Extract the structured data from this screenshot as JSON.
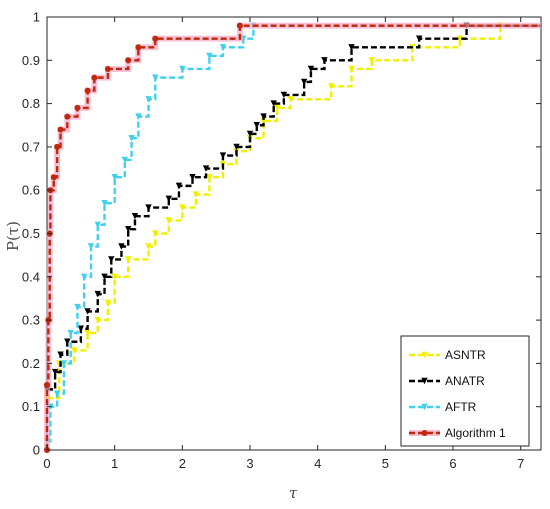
{
  "chart_data": {
    "type": "line",
    "plot_kind": "performance-profile-step",
    "xlabel": "τ",
    "ylabel": "P(τ)",
    "xlim": [
      0,
      7.3
    ],
    "ylim": [
      0,
      1
    ],
    "x_ticks": [
      "0",
      "1",
      "2",
      "3",
      "4",
      "5",
      "6",
      "7"
    ],
    "y_ticks": [
      "0",
      "0.1",
      "0.2",
      "0.3",
      "0.4",
      "0.5",
      "0.6",
      "0.7",
      "0.8",
      "0.9",
      "1"
    ],
    "x_tick_values": [
      0,
      1,
      2,
      3,
      4,
      5,
      6,
      7
    ],
    "y_tick_values": [
      0,
      0.1,
      0.2,
      0.3,
      0.4,
      0.5,
      0.6,
      0.7,
      0.8,
      0.9,
      1
    ],
    "grid": false,
    "legend_position": "bottom-right",
    "series": [
      {
        "name": "ASNTR",
        "color": "#f0f000",
        "marker": "triangle-down",
        "linestyle": "dashed",
        "points": [
          [
            0,
            0.12
          ],
          [
            0.18,
            0.2
          ],
          [
            0.4,
            0.23
          ],
          [
            0.6,
            0.27
          ],
          [
            0.75,
            0.3
          ],
          [
            0.9,
            0.34
          ],
          [
            1.0,
            0.4
          ],
          [
            1.2,
            0.44
          ],
          [
            1.5,
            0.47
          ],
          [
            1.6,
            0.5
          ],
          [
            1.8,
            0.53
          ],
          [
            2.0,
            0.56
          ],
          [
            2.2,
            0.59
          ],
          [
            2.4,
            0.63
          ],
          [
            2.6,
            0.66
          ],
          [
            2.8,
            0.69
          ],
          [
            3.0,
            0.72
          ],
          [
            3.2,
            0.76
          ],
          [
            3.4,
            0.79
          ],
          [
            3.6,
            0.81
          ],
          [
            4.2,
            0.84
          ],
          [
            4.5,
            0.88
          ],
          [
            4.8,
            0.9
          ],
          [
            5.4,
            0.93
          ],
          [
            6.1,
            0.95
          ],
          [
            6.7,
            0.98
          ],
          [
            7.3,
            0.98
          ]
        ]
      },
      {
        "name": "ANATR",
        "color": "#000000",
        "marker": "triangle-down",
        "linestyle": "dashed",
        "points": [
          [
            0,
            0.14
          ],
          [
            0.12,
            0.18
          ],
          [
            0.2,
            0.22
          ],
          [
            0.3,
            0.25
          ],
          [
            0.5,
            0.28
          ],
          [
            0.6,
            0.32
          ],
          [
            0.75,
            0.36
          ],
          [
            0.85,
            0.4
          ],
          [
            0.95,
            0.44
          ],
          [
            1.1,
            0.47
          ],
          [
            1.2,
            0.51
          ],
          [
            1.3,
            0.54
          ],
          [
            1.5,
            0.56
          ],
          [
            1.8,
            0.58
          ],
          [
            1.95,
            0.61
          ],
          [
            2.15,
            0.63
          ],
          [
            2.35,
            0.65
          ],
          [
            2.6,
            0.68
          ],
          [
            2.8,
            0.7
          ],
          [
            3.0,
            0.73
          ],
          [
            3.1,
            0.75
          ],
          [
            3.2,
            0.77
          ],
          [
            3.35,
            0.8
          ],
          [
            3.5,
            0.82
          ],
          [
            3.8,
            0.85
          ],
          [
            3.9,
            0.88
          ],
          [
            4.1,
            0.9
          ],
          [
            4.5,
            0.93
          ],
          [
            5.5,
            0.95
          ],
          [
            6.2,
            0.98
          ],
          [
            7.3,
            0.98
          ]
        ]
      },
      {
        "name": "AFTR",
        "color": "#40d0f0",
        "marker": "triangle-down",
        "linestyle": "dashed",
        "points": [
          [
            0,
            0.02
          ],
          [
            0.05,
            0.1
          ],
          [
            0.15,
            0.13
          ],
          [
            0.25,
            0.2
          ],
          [
            0.35,
            0.27
          ],
          [
            0.45,
            0.33
          ],
          [
            0.55,
            0.4
          ],
          [
            0.65,
            0.47
          ],
          [
            0.75,
            0.52
          ],
          [
            0.85,
            0.57
          ],
          [
            1.0,
            0.63
          ],
          [
            1.15,
            0.67
          ],
          [
            1.25,
            0.72
          ],
          [
            1.35,
            0.77
          ],
          [
            1.5,
            0.81
          ],
          [
            1.6,
            0.86
          ],
          [
            2.0,
            0.88
          ],
          [
            2.4,
            0.91
          ],
          [
            2.6,
            0.93
          ],
          [
            2.9,
            0.95
          ],
          [
            3.05,
            0.98
          ],
          [
            7.3,
            0.98
          ]
        ]
      },
      {
        "name": "Algorithm 1",
        "color": "#c0280c",
        "marker": "circle",
        "linestyle": "dashed",
        "points": [
          [
            0,
            0.0
          ],
          [
            0,
            0.15
          ],
          [
            0.02,
            0.3
          ],
          [
            0.04,
            0.5
          ],
          [
            0.05,
            0.6
          ],
          [
            0.1,
            0.63
          ],
          [
            0.15,
            0.7
          ],
          [
            0.2,
            0.74
          ],
          [
            0.3,
            0.77
          ],
          [
            0.45,
            0.79
          ],
          [
            0.6,
            0.83
          ],
          [
            0.7,
            0.86
          ],
          [
            0.9,
            0.88
          ],
          [
            1.2,
            0.9
          ],
          [
            1.35,
            0.93
          ],
          [
            1.6,
            0.95
          ],
          [
            2.85,
            0.98
          ],
          [
            7.3,
            0.98
          ]
        ]
      }
    ]
  }
}
